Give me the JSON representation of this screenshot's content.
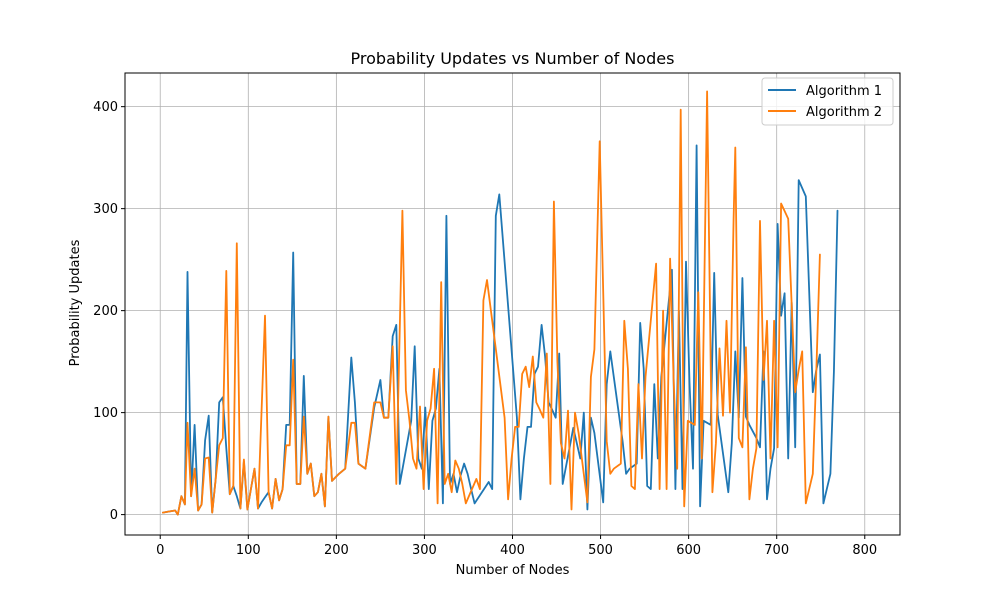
{
  "chart_data": {
    "type": "line",
    "title": "Probability Updates vs Number of Nodes",
    "xlabel": "Number of Nodes",
    "ylabel": "Probability Updates",
    "xlim": [
      -40,
      840
    ],
    "ylim": [
      -20,
      433
    ],
    "xticks": [
      0,
      100,
      200,
      300,
      400,
      500,
      600,
      700,
      800
    ],
    "yticks": [
      0,
      100,
      200,
      300,
      400
    ],
    "grid": true,
    "legend_position": "top-right",
    "series": [
      {
        "name": "Algorithm 1",
        "color": "#1f77b4",
        "points": [
          [
            3,
            2
          ],
          [
            10,
            3
          ],
          [
            17,
            4
          ],
          [
            20,
            0
          ],
          [
            24,
            18
          ],
          [
            28,
            10
          ],
          [
            31,
            238
          ],
          [
            35,
            18
          ],
          [
            39,
            88
          ],
          [
            43,
            4
          ],
          [
            47,
            10
          ],
          [
            51,
            73
          ],
          [
            55,
            97
          ],
          [
            59,
            2
          ],
          [
            63,
            35
          ],
          [
            67,
            110
          ],
          [
            71,
            115
          ],
          [
            75,
            65
          ],
          [
            79,
            20
          ],
          [
            83,
            28
          ],
          [
            87,
            18
          ],
          [
            91,
            6
          ],
          [
            95,
            52
          ],
          [
            99,
            5
          ],
          [
            103,
            25
          ],
          [
            107,
            45
          ],
          [
            111,
            6
          ],
          [
            115,
            12
          ],
          [
            119,
            17
          ],
          [
            123,
            22
          ],
          [
            127,
            6
          ],
          [
            131,
            35
          ],
          [
            135,
            14
          ],
          [
            139,
            25
          ],
          [
            143,
            88
          ],
          [
            147,
            88
          ],
          [
            151,
            257
          ],
          [
            155,
            30
          ],
          [
            159,
            30
          ],
          [
            163,
            136
          ],
          [
            167,
            40
          ],
          [
            171,
            50
          ],
          [
            175,
            18
          ],
          [
            179,
            22
          ],
          [
            183,
            40
          ],
          [
            187,
            8
          ],
          [
            191,
            96
          ],
          [
            195,
            33
          ],
          [
            203,
            40
          ],
          [
            210,
            45
          ],
          [
            217,
            154
          ],
          [
            221,
            110
          ],
          [
            225,
            50
          ],
          [
            233,
            45
          ],
          [
            243,
            105
          ],
          [
            250,
            132
          ],
          [
            254,
            95
          ],
          [
            259,
            95
          ],
          [
            264,
            175
          ],
          [
            268,
            186
          ],
          [
            272,
            30
          ],
          [
            285,
            92
          ],
          [
            289,
            165
          ],
          [
            293,
            55
          ],
          [
            297,
            45
          ],
          [
            301,
            105
          ],
          [
            305,
            25
          ],
          [
            309,
            92
          ],
          [
            313,
            104
          ],
          [
            317,
            143
          ],
          [
            321,
            11
          ],
          [
            325,
            293
          ],
          [
            329,
            30
          ],
          [
            333,
            40
          ],
          [
            337,
            22
          ],
          [
            341,
            38
          ],
          [
            345,
            50
          ],
          [
            349,
            40
          ],
          [
            353,
            25
          ],
          [
            357,
            11
          ],
          [
            373,
            32
          ],
          [
            377,
            25
          ],
          [
            381,
            293
          ],
          [
            385,
            314
          ],
          [
            405,
            95
          ],
          [
            409,
            15
          ],
          [
            413,
            55
          ],
          [
            417,
            86
          ],
          [
            421,
            86
          ],
          [
            425,
            138
          ],
          [
            429,
            145
          ],
          [
            433,
            186
          ],
          [
            437,
            155
          ],
          [
            441,
            110
          ],
          [
            445,
            103
          ],
          [
            449,
            95
          ],
          [
            453,
            158
          ],
          [
            457,
            30
          ],
          [
            469,
            85
          ],
          [
            473,
            70
          ],
          [
            477,
            55
          ],
          [
            481,
            100
          ],
          [
            485,
            5
          ],
          [
            489,
            95
          ],
          [
            493,
            80
          ],
          [
            503,
            12
          ],
          [
            507,
            128
          ],
          [
            511,
            160
          ],
          [
            525,
            72
          ],
          [
            529,
            40
          ],
          [
            533,
            45
          ],
          [
            541,
            50
          ],
          [
            545,
            188
          ],
          [
            549,
            143
          ],
          [
            553,
            28
          ],
          [
            557,
            25
          ],
          [
            561,
            128
          ],
          [
            565,
            55
          ],
          [
            569,
            135
          ],
          [
            581,
            240
          ],
          [
            585,
            25
          ],
          [
            589,
            200
          ],
          [
            593,
            25
          ],
          [
            597,
            248
          ],
          [
            601,
            130
          ],
          [
            605,
            45
          ],
          [
            609,
            362
          ],
          [
            613,
            8
          ],
          [
            617,
            92
          ],
          [
            621,
            90
          ],
          [
            625,
            88
          ],
          [
            629,
            237
          ],
          [
            633,
            98
          ],
          [
            645,
            22
          ],
          [
            649,
            70
          ],
          [
            653,
            160
          ],
          [
            657,
            95
          ],
          [
            661,
            232
          ],
          [
            665,
            96
          ],
          [
            669,
            88
          ],
          [
            677,
            75
          ],
          [
            681,
            66
          ],
          [
            685,
            160
          ],
          [
            689,
            15
          ],
          [
            693,
            45
          ],
          [
            697,
            65
          ],
          [
            701,
            285
          ],
          [
            705,
            195
          ],
          [
            709,
            217
          ],
          [
            713,
            55
          ],
          [
            717,
            208
          ],
          [
            721,
            66
          ],
          [
            725,
            328
          ],
          [
            733,
            312
          ],
          [
            741,
            120
          ],
          [
            745,
            142
          ],
          [
            749,
            157
          ],
          [
            753,
            11
          ],
          [
            761,
            40
          ],
          [
            765,
            140
          ],
          [
            769,
            298
          ]
        ]
      },
      {
        "name": "Algorithm 2",
        "color": "#ff7f0e",
        "points": [
          [
            3,
            2
          ],
          [
            10,
            3
          ],
          [
            17,
            4
          ],
          [
            20,
            0
          ],
          [
            24,
            18
          ],
          [
            28,
            10
          ],
          [
            31,
            90
          ],
          [
            35,
            18
          ],
          [
            39,
            45
          ],
          [
            43,
            4
          ],
          [
            47,
            10
          ],
          [
            51,
            55
          ],
          [
            55,
            56
          ],
          [
            59,
            2
          ],
          [
            63,
            35
          ],
          [
            67,
            68
          ],
          [
            71,
            75
          ],
          [
            75,
            239
          ],
          [
            79,
            20
          ],
          [
            83,
            28
          ],
          [
            87,
            266
          ],
          [
            91,
            6
          ],
          [
            95,
            54
          ],
          [
            99,
            5
          ],
          [
            103,
            25
          ],
          [
            107,
            45
          ],
          [
            111,
            6
          ],
          [
            115,
            100
          ],
          [
            119,
            195
          ],
          [
            123,
            22
          ],
          [
            127,
            6
          ],
          [
            131,
            35
          ],
          [
            135,
            14
          ],
          [
            139,
            25
          ],
          [
            143,
            68
          ],
          [
            147,
            68
          ],
          [
            151,
            152
          ],
          [
            155,
            30
          ],
          [
            159,
            30
          ],
          [
            163,
            96
          ],
          [
            167,
            40
          ],
          [
            171,
            50
          ],
          [
            175,
            18
          ],
          [
            179,
            22
          ],
          [
            183,
            40
          ],
          [
            187,
            8
          ],
          [
            191,
            96
          ],
          [
            195,
            33
          ],
          [
            203,
            40
          ],
          [
            210,
            45
          ],
          [
            217,
            90
          ],
          [
            221,
            90
          ],
          [
            225,
            50
          ],
          [
            233,
            45
          ],
          [
            243,
            110
          ],
          [
            250,
            110
          ],
          [
            254,
            95
          ],
          [
            259,
            95
          ],
          [
            264,
            165
          ],
          [
            268,
            30
          ],
          [
            275,
            298
          ],
          [
            279,
            122
          ],
          [
            283,
            92
          ],
          [
            287,
            55
          ],
          [
            291,
            45
          ],
          [
            295,
            106
          ],
          [
            299,
            25
          ],
          [
            303,
            92
          ],
          [
            307,
            104
          ],
          [
            311,
            143
          ],
          [
            315,
            11
          ],
          [
            319,
            228
          ],
          [
            323,
            30
          ],
          [
            327,
            40
          ],
          [
            331,
            22
          ],
          [
            335,
            53
          ],
          [
            339,
            45
          ],
          [
            343,
            30
          ],
          [
            347,
            11
          ],
          [
            359,
            35
          ],
          [
            363,
            25
          ],
          [
            367,
            210
          ],
          [
            371,
            230
          ],
          [
            391,
            95
          ],
          [
            395,
            15
          ],
          [
            399,
            55
          ],
          [
            403,
            86
          ],
          [
            407,
            86
          ],
          [
            411,
            138
          ],
          [
            415,
            145
          ],
          [
            419,
            125
          ],
          [
            423,
            155
          ],
          [
            427,
            110
          ],
          [
            431,
            103
          ],
          [
            435,
            95
          ],
          [
            439,
            158
          ],
          [
            443,
            30
          ],
          [
            447,
            307
          ],
          [
            451,
            150
          ],
          [
            455,
            70
          ],
          [
            459,
            55
          ],
          [
            463,
            102
          ],
          [
            467,
            5
          ],
          [
            471,
            100
          ],
          [
            475,
            80
          ],
          [
            485,
            12
          ],
          [
            489,
            135
          ],
          [
            493,
            162
          ],
          [
            499,
            366
          ],
          [
            507,
            72
          ],
          [
            511,
            40
          ],
          [
            515,
            45
          ],
          [
            523,
            50
          ],
          [
            527,
            190
          ],
          [
            531,
            143
          ],
          [
            535,
            28
          ],
          [
            539,
            25
          ],
          [
            543,
            128
          ],
          [
            547,
            55
          ],
          [
            551,
            135
          ],
          [
            563,
            246
          ],
          [
            567,
            25
          ],
          [
            571,
            200
          ],
          [
            575,
            25
          ],
          [
            579,
            251
          ],
          [
            583,
            130
          ],
          [
            587,
            45
          ],
          [
            591,
            397
          ],
          [
            595,
            8
          ],
          [
            599,
            92
          ],
          [
            603,
            90
          ],
          [
            607,
            88
          ],
          [
            611,
            218
          ],
          [
            615,
            55
          ],
          [
            621,
            415
          ],
          [
            627,
            22
          ],
          [
            631,
            70
          ],
          [
            635,
            163
          ],
          [
            639,
            97
          ],
          [
            643,
            190
          ],
          [
            647,
            100
          ],
          [
            651,
            290
          ],
          [
            653,
            360
          ],
          [
            657,
            75
          ],
          [
            661,
            66
          ],
          [
            665,
            164
          ],
          [
            669,
            15
          ],
          [
            673,
            45
          ],
          [
            677,
            65
          ],
          [
            681,
            288
          ],
          [
            685,
            132
          ],
          [
            689,
            190
          ],
          [
            693,
            55
          ],
          [
            697,
            190
          ],
          [
            701,
            66
          ],
          [
            705,
            305
          ],
          [
            713,
            290
          ],
          [
            721,
            120
          ],
          [
            725,
            142
          ],
          [
            729,
            160
          ],
          [
            733,
            11
          ],
          [
            741,
            40
          ],
          [
            745,
            140
          ],
          [
            749,
            255
          ]
        ]
      }
    ]
  }
}
